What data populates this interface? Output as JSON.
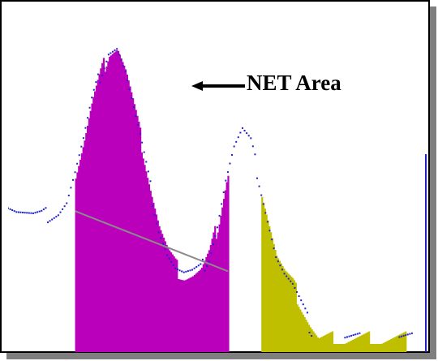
{
  "chart_data": {
    "type": "area",
    "title": "",
    "xlabel": "",
    "ylabel": "",
    "grid": false,
    "xlim": [
      0,
      100
    ],
    "ylim": [
      0,
      100
    ],
    "colors": {
      "peak1": "#bb00bb",
      "peak2": "#bfbf00",
      "points": "#2222cc",
      "baseline": "#8a8a8a",
      "axis": "#2222cc"
    },
    "series": [
      {
        "name": "",
        "role": "spectrum",
        "x": [
          0,
          2,
          4,
          6,
          8,
          10,
          12,
          14,
          16,
          18,
          20,
          22,
          24,
          26,
          28,
          30,
          32,
          34,
          36,
          38,
          40,
          42,
          44,
          46,
          48,
          50,
          52,
          54,
          56,
          58,
          60,
          62,
          64,
          66,
          68,
          70,
          72,
          74,
          76,
          78,
          80,
          82,
          84,
          86,
          88,
          90,
          92,
          94,
          96,
          98,
          100
        ],
        "y": [
          44,
          42,
          41,
          40,
          40,
          41,
          42,
          45,
          54,
          64,
          76,
          85,
          93,
          94,
          86,
          74,
          62,
          49,
          37,
          29,
          24,
          22,
          22,
          23,
          28,
          38,
          52,
          62,
          67,
          63,
          52,
          40,
          28,
          22,
          18,
          12,
          6,
          1,
          1,
          1,
          1,
          1,
          1,
          1,
          1,
          1,
          1,
          1,
          1,
          1,
          1
        ]
      }
    ],
    "regions": [
      {
        "name": "",
        "x_start": 16,
        "x_end": 52.5,
        "fill": "peak1",
        "baseline": [
          42,
          23
        ]
      },
      {
        "name": "",
        "x_start": 60.5,
        "x_end": 95,
        "fill": "peak2"
      }
    ],
    "annotation": {
      "text": "NET Area",
      "arrow": "left"
    }
  }
}
